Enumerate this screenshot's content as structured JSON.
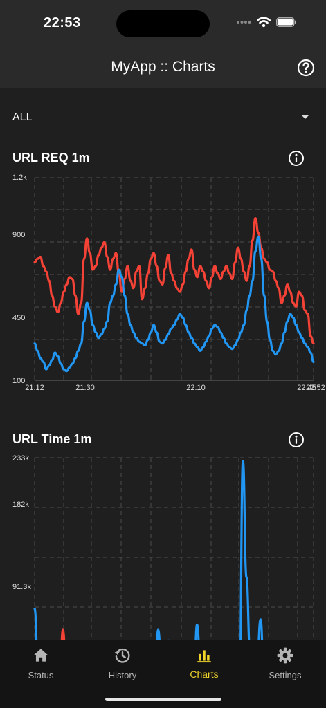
{
  "status_bar": {
    "time": "22:53"
  },
  "app_bar": {
    "title": "MyApp :: Charts",
    "help_icon": "help-circle-icon"
  },
  "filter": {
    "value": "ALL"
  },
  "colors": {
    "background": "#1f1f1f",
    "header": "#2a2a2b",
    "series_blue": "#2196f3",
    "series_red": "#f44336",
    "active_tab": "#f1d52b"
  },
  "charts": [
    {
      "title": "URL REQ 1m",
      "info_icon": "info-icon"
    },
    {
      "title": "URL Time 1m",
      "info_icon": "info-icon"
    }
  ],
  "chart_data": [
    {
      "type": "line",
      "title": "URL REQ 1m",
      "y_ticks": [
        "1.2k",
        "900",
        "450",
        "100"
      ],
      "ylim": [
        100,
        1200
      ],
      "x_ticks": [
        "21:12",
        "21:30",
        "22:10",
        "22:45",
        "22:52"
      ],
      "grid": true,
      "series": [
        {
          "color": "#f44336",
          "values": [
            740,
            760,
            770,
            720,
            690,
            640,
            560,
            500,
            470,
            520,
            580,
            620,
            660,
            650,
            560,
            460,
            520,
            760,
            870,
            790,
            700,
            720,
            780,
            820,
            850,
            770,
            700,
            760,
            790,
            680,
            580,
            650,
            720,
            640,
            600,
            690,
            720,
            540,
            600,
            680,
            760,
            790,
            720,
            640,
            620,
            710,
            780,
            680,
            640,
            600,
            580,
            620,
            690,
            760,
            810,
            700,
            660,
            720,
            690,
            640,
            600,
            660,
            720,
            680,
            650,
            690,
            720,
            680,
            650,
            740,
            820,
            760,
            690,
            640,
            720,
            860,
            980,
            900,
            820,
            760,
            740,
            700,
            690,
            640,
            600,
            520,
            560,
            620,
            580,
            520,
            500,
            580,
            560,
            480,
            460,
            340,
            300
          ]
        },
        {
          "color": "#2196f3",
          "values": [
            300,
            260,
            220,
            200,
            160,
            180,
            210,
            250,
            230,
            190,
            160,
            150,
            170,
            190,
            220,
            260,
            300,
            420,
            520,
            480,
            400,
            360,
            330,
            350,
            380,
            420,
            520,
            560,
            620,
            700,
            660,
            560,
            460,
            400,
            360,
            330,
            310,
            300,
            290,
            320,
            360,
            400,
            360,
            310,
            300,
            320,
            350,
            380,
            400,
            430,
            460,
            440,
            400,
            360,
            330,
            300,
            280,
            260,
            280,
            310,
            340,
            380,
            400,
            390,
            360,
            330,
            300,
            280,
            270,
            290,
            320,
            360,
            400,
            480,
            560,
            640,
            800,
            880,
            760,
            560,
            420,
            320,
            260,
            240,
            260,
            300,
            360,
            420,
            460,
            440,
            400,
            360,
            330,
            300,
            280,
            250,
            200
          ]
        }
      ]
    },
    {
      "type": "line",
      "title": "URL Time 1m",
      "y_ticks": [
        "233k",
        "182k",
        "91.3k"
      ],
      "ylim": [
        0,
        233000
      ],
      "grid": true,
      "series": [
        {
          "color": "#2196f3",
          "values": [
            90000,
            30000,
            10000,
            5000,
            8000,
            4000,
            6000,
            15000,
            8000,
            6000,
            4000,
            12000,
            50000,
            20000,
            8000,
            5000,
            25000,
            40000,
            15000,
            8000,
            6000,
            10000,
            25000,
            18000,
            8000,
            4000,
            6000,
            3000,
            5000,
            8000,
            5000,
            4000,
            9000,
            6000,
            5000,
            70000,
            30000,
            12000,
            60000,
            20000,
            8000,
            15000,
            40000,
            22000,
            10000,
            8000,
            75000,
            35000,
            10000,
            8000,
            6000,
            5000,
            4000,
            12000,
            8000,
            6000,
            5000,
            4000,
            6000,
            230000,
            120000,
            50000,
            20000,
            40000,
            80000,
            20000,
            8000,
            5000,
            4000,
            3000,
            5000,
            10000,
            8000,
            6000,
            5000,
            4000,
            6000,
            3000,
            40000,
            8000
          ]
        },
        {
          "color": "#f44336",
          "values": [
            20000,
            25000,
            15000,
            10000,
            8000,
            12000,
            6000,
            5000,
            70000,
            30000,
            15000,
            25000,
            10000,
            8000,
            60000,
            40000,
            20000,
            30000,
            12000,
            10000,
            25000,
            8000,
            15000,
            8000,
            12000,
            10000,
            6000,
            8000,
            6000,
            10000,
            20000,
            12000,
            20000,
            10000,
            8000,
            12000,
            25000,
            15000,
            22000,
            12000,
            15000,
            10000,
            30000,
            18000,
            14000,
            12000,
            10000,
            22000,
            15000,
            12000,
            10000,
            8000,
            10000,
            15000,
            12000,
            20000,
            8000,
            6000,
            25000,
            40000,
            35000,
            28000,
            20000,
            12000,
            10000,
            8000,
            6000,
            5000,
            12000,
            8000,
            15000,
            10000,
            8000,
            6000,
            12000,
            10000,
            6000,
            8000,
            25000,
            10000
          ]
        }
      ]
    }
  ],
  "nav": {
    "items": [
      {
        "label": "Status",
        "icon": "home-icon"
      },
      {
        "label": "History",
        "icon": "history-icon"
      },
      {
        "label": "Charts",
        "icon": "bar-chart-icon"
      },
      {
        "label": "Settings",
        "icon": "gear-icon"
      }
    ],
    "active": "Charts"
  }
}
